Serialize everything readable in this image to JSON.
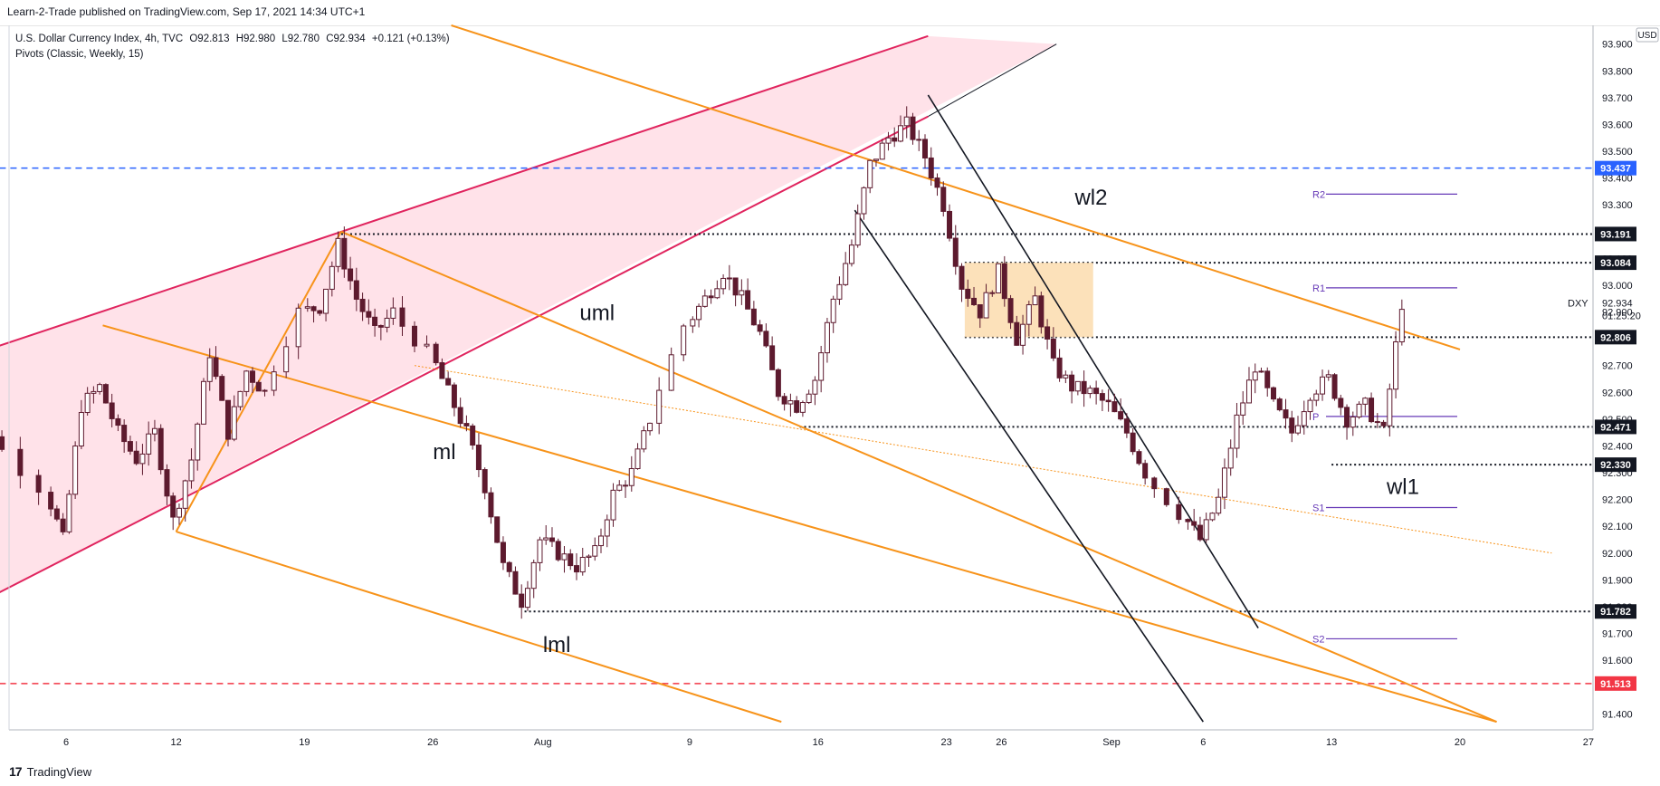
{
  "header": {
    "published": "Learn-2-Trade published on TradingView.com, Sep 17, 2021 14:34 UTC+1"
  },
  "legend": {
    "symbol_line": "U.S. Dollar Currency Index, 4h, TVC",
    "ohlc": {
      "O": "92.813",
      "H": "92.980",
      "L": "92.780",
      "C": "92.934",
      "change": "+0.121 (+0.13%)"
    },
    "indicator": "Pivots (Classic, Weekly, 15)"
  },
  "footer": {
    "brand": "TradingView"
  },
  "colors": {
    "up": "#ffffff",
    "down": "#5d1a2e",
    "wick": "#5d1a2e",
    "orange": "#f7931a",
    "crimson": "#e0245e",
    "pink_fill": "#ffdbe3",
    "blue_dash": "#2962ff",
    "red_dash": "#f23645",
    "pivot": "#673ab7",
    "zone": "#fcdcae",
    "black": "#131722"
  },
  "chart_data": {
    "type": "candlestick",
    "symbol": "DXY",
    "timeframe": "4h",
    "currency": "USD",
    "countdown": "01:25:20",
    "ylim": [
      91.34,
      93.97
    ],
    "y_ticks": [
      93.9,
      93.8,
      93.7,
      93.6,
      93.5,
      93.4,
      93.3,
      93.2,
      93.1,
      93.0,
      92.9,
      92.8,
      92.7,
      92.6,
      92.5,
      92.4,
      92.3,
      92.2,
      92.1,
      92.0,
      91.9,
      91.8,
      91.7,
      91.6,
      91.5,
      91.4
    ],
    "x_ticks": [
      {
        "label": "6",
        "date": "2021-07-06"
      },
      {
        "label": "12",
        "date": "2021-07-12"
      },
      {
        "label": "19",
        "date": "2021-07-19"
      },
      {
        "label": "26",
        "date": "2021-07-26"
      },
      {
        "label": "Aug",
        "date": "2021-08-01"
      },
      {
        "label": "9",
        "date": "2021-08-09"
      },
      {
        "label": "16",
        "date": "2021-08-16"
      },
      {
        "label": "23",
        "date": "2021-08-23"
      },
      {
        "label": "26",
        "date": "2021-08-26"
      },
      {
        "label": "Sep",
        "date": "2021-09-01"
      },
      {
        "label": "6",
        "date": "2021-09-06"
      },
      {
        "label": "13",
        "date": "2021-09-13"
      },
      {
        "label": "20",
        "date": "2021-09-20"
      },
      {
        "label": "27",
        "date": "2021-09-27"
      }
    ],
    "price_points": [
      [
        "2021-06-30",
        92.55
      ],
      [
        "2021-07-01",
        92.65
      ],
      [
        "2021-07-02",
        92.45
      ],
      [
        "2021-07-05",
        92.25
      ],
      [
        "2021-07-06",
        92.05
      ],
      [
        "2021-07-07",
        92.55
      ],
      [
        "2021-07-08",
        92.62
      ],
      [
        "2021-07-09",
        92.45
      ],
      [
        "2021-07-10",
        92.35
      ],
      [
        "2021-07-11",
        92.45
      ],
      [
        "2021-07-12",
        92.12
      ],
      [
        "2021-07-13",
        92.35
      ],
      [
        "2021-07-14",
        92.75
      ],
      [
        "2021-07-15",
        92.45
      ],
      [
        "2021-07-16",
        92.68
      ],
      [
        "2021-07-17",
        92.6
      ],
      [
        "2021-07-19",
        92.9
      ],
      [
        "2021-07-20",
        92.92
      ],
      [
        "2021-07-21",
        93.15
      ],
      [
        "2021-07-22",
        92.95
      ],
      [
        "2021-07-23",
        92.82
      ],
      [
        "2021-07-24",
        92.9
      ],
      [
        "2021-07-26",
        92.75
      ],
      [
        "2021-07-27",
        92.6
      ],
      [
        "2021-07-28",
        92.45
      ],
      [
        "2021-07-29",
        92.25
      ],
      [
        "2021-07-30",
        91.95
      ],
      [
        "2021-07-31",
        91.82
      ],
      [
        "2021-08-01",
        92.05
      ],
      [
        "2021-08-02",
        92.0
      ],
      [
        "2021-08-03",
        91.95
      ],
      [
        "2021-08-04",
        92.0
      ],
      [
        "2021-08-05",
        92.22
      ],
      [
        "2021-08-06",
        92.3
      ],
      [
        "2021-08-07",
        92.5
      ],
      [
        "2021-08-09",
        92.85
      ],
      [
        "2021-08-10",
        92.95
      ],
      [
        "2021-08-11",
        93.05
      ],
      [
        "2021-08-12",
        92.95
      ],
      [
        "2021-08-13",
        92.82
      ],
      [
        "2021-08-14",
        92.6
      ],
      [
        "2021-08-15",
        92.55
      ],
      [
        "2021-08-16",
        92.65
      ],
      [
        "2021-08-17",
        92.95
      ],
      [
        "2021-08-18",
        93.15
      ],
      [
        "2021-08-19",
        93.45
      ],
      [
        "2021-08-20",
        93.55
      ],
      [
        "2021-08-21",
        93.6
      ],
      [
        "2021-08-22",
        93.48
      ],
      [
        "2021-08-23",
        93.3
      ],
      [
        "2021-08-24",
        93.0
      ],
      [
        "2021-08-25",
        92.9
      ],
      [
        "2021-08-26",
        93.05
      ],
      [
        "2021-08-27",
        92.8
      ],
      [
        "2021-08-28",
        92.95
      ],
      [
        "2021-08-29",
        92.7
      ],
      [
        "2021-08-30",
        92.62
      ],
      [
        "2021-08-31",
        92.6
      ],
      [
        "2021-09-01",
        92.55
      ],
      [
        "2021-09-02",
        92.45
      ],
      [
        "2021-09-03",
        92.3
      ],
      [
        "2021-09-05",
        92.15
      ],
      [
        "2021-09-06",
        92.05
      ],
      [
        "2021-09-07",
        92.2
      ],
      [
        "2021-09-08",
        92.5
      ],
      [
        "2021-09-09",
        92.7
      ],
      [
        "2021-09-10",
        92.55
      ],
      [
        "2021-09-11",
        92.45
      ],
      [
        "2021-09-12",
        92.6
      ],
      [
        "2021-09-13",
        92.65
      ],
      [
        "2021-09-14",
        92.5
      ],
      [
        "2021-09-15",
        92.55
      ],
      [
        "2021-09-16",
        92.45
      ],
      [
        "2021-09-17",
        92.934
      ]
    ],
    "price_labels": [
      {
        "value": 93.437,
        "text": "93.437",
        "style": "blue"
      },
      {
        "value": 93.191,
        "text": "93.191",
        "style": "black"
      },
      {
        "value": 93.084,
        "text": "93.084",
        "style": "black"
      },
      {
        "value": 92.806,
        "text": "92.806",
        "style": "black"
      },
      {
        "value": 92.471,
        "text": "92.471",
        "style": "black"
      },
      {
        "value": 92.33,
        "text": "92.330",
        "style": "black"
      },
      {
        "value": 91.782,
        "text": "91.782",
        "style": "black"
      },
      {
        "value": 91.513,
        "text": "91.513",
        "style": "red"
      }
    ],
    "last_price": "92.934",
    "pivots": [
      {
        "name": "R2",
        "value": 93.34
      },
      {
        "name": "R1",
        "value": 92.99
      },
      {
        "name": "P",
        "value": 92.51
      },
      {
        "name": "S1",
        "value": 92.17
      },
      {
        "name": "S2",
        "value": 91.68
      }
    ],
    "annotations": [
      "wl2",
      "uml",
      "ml",
      "lml",
      "wl1"
    ],
    "horizontal_levels": [
      {
        "value": 93.437,
        "style": "blue-dashed",
        "from": "2021-06-30"
      },
      {
        "value": 91.513,
        "style": "red-dashed",
        "from": "2021-06-30"
      },
      {
        "value": 93.191,
        "style": "dotted",
        "from": "2021-07-21"
      },
      {
        "value": 93.084,
        "style": "dotted",
        "from": "2021-08-24"
      },
      {
        "value": 92.806,
        "style": "dotted",
        "from": "2021-08-24"
      },
      {
        "value": 92.471,
        "style": "dotted",
        "from": "2021-08-15"
      },
      {
        "value": 92.33,
        "style": "dotted",
        "from": "2021-09-13"
      },
      {
        "value": 91.782,
        "style": "dotted",
        "from": "2021-07-31"
      }
    ],
    "supply_zone": {
      "from": "2021-08-24",
      "to": "2021-08-31",
      "low": 92.806,
      "high": 93.084
    },
    "rising_wedge": {
      "upper": [
        [
          "2021-06-30",
          92.72
        ],
        [
          "2021-07-21",
          93.2
        ],
        [
          "2021-08-22",
          93.93
        ]
      ],
      "lower": [
        [
          "2021-06-30",
          91.77
        ],
        [
          "2021-07-12",
          92.08
        ],
        [
          "2021-08-22",
          93.63
        ],
        [
          "2021-08-29",
          93.9
        ]
      ]
    },
    "pitchfork": {
      "upper": [
        [
          "2021-07-21",
          93.2
        ],
        [
          "2021-09-22",
          91.37
        ]
      ],
      "median": [
        [
          "2021-07-08",
          92.85
        ],
        [
          "2021-09-22",
          91.37
        ]
      ],
      "lower": [
        [
          "2021-07-12",
          92.08
        ],
        [
          "2021-08-14",
          91.37
        ]
      ],
      "bar": [
        [
          "2021-07-12",
          92.08
        ],
        [
          "2021-07-21",
          93.2
        ]
      ]
    },
    "descending_channel": [
      {
        "from": [
          "2021-08-22",
          93.71
        ],
        "to": [
          "2021-09-09",
          91.72
        ]
      },
      {
        "from": [
          "2021-08-18",
          93.28
        ],
        "to": [
          "2021-09-06",
          91.37
        ]
      }
    ],
    "warning_line_wl2": [
      [
        "2021-07-27",
        93.97
      ],
      [
        "2021-09-20",
        92.76
      ]
    ],
    "warning_line_dotted": [
      [
        "2021-07-25",
        92.7
      ],
      [
        "2021-09-25",
        92.0
      ]
    ]
  }
}
